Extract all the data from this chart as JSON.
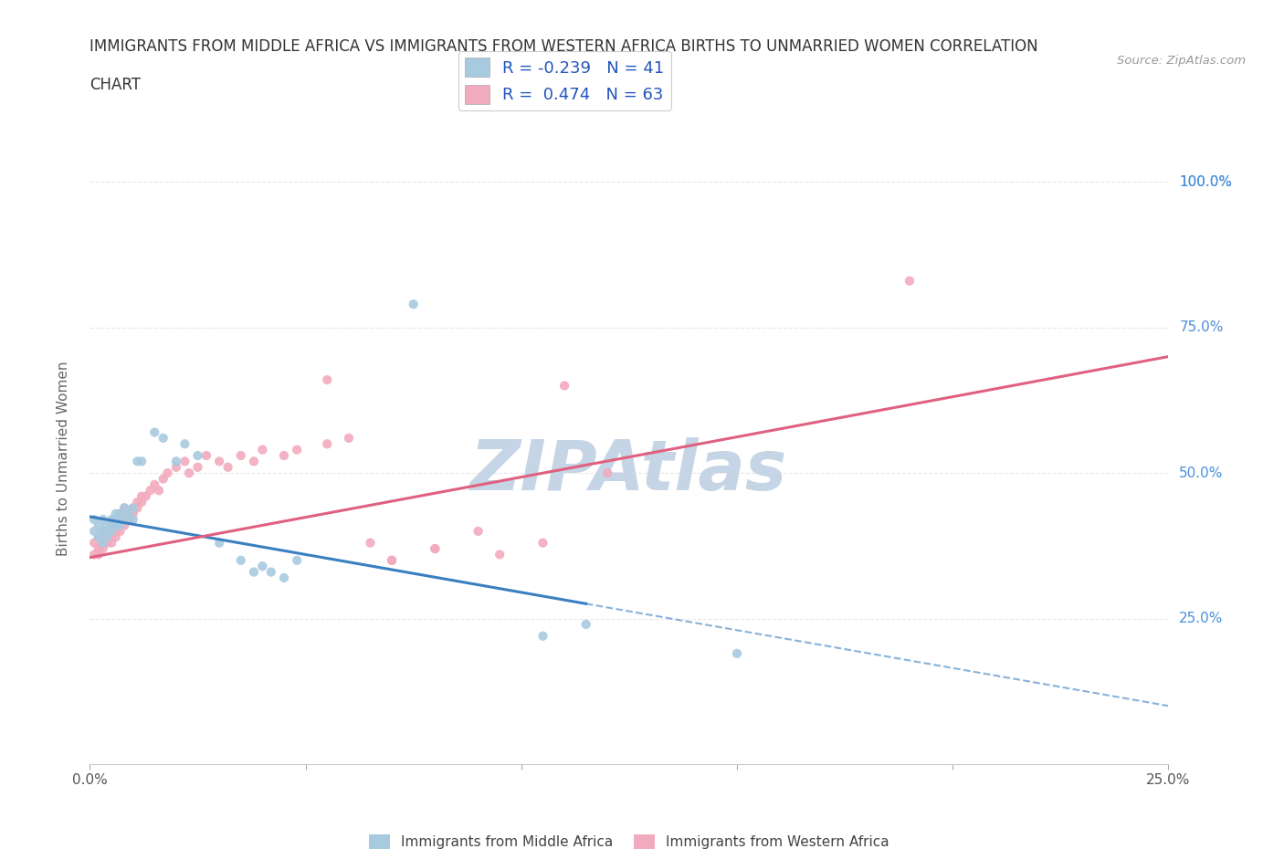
{
  "title_line1": "IMMIGRANTS FROM MIDDLE AFRICA VS IMMIGRANTS FROM WESTERN AFRICA BIRTHS TO UNMARRIED WOMEN CORRELATION",
  "title_line2": "CHART",
  "source_text": "Source: ZipAtlas.com",
  "ylabel": "Births to Unmarried Women",
  "xlim": [
    0.0,
    0.25
  ],
  "ylim": [
    0.0,
    1.05
  ],
  "xtick_values": [
    0.0,
    0.05,
    0.1,
    0.15,
    0.2,
    0.25
  ],
  "xtick_labels_show": [
    "0.0%",
    "",
    "",
    "",
    "",
    "25.0%"
  ],
  "ytick_values": [
    0.25,
    0.5,
    0.75,
    1.0
  ],
  "ytick_labels": [
    "25.0%",
    "50.0%",
    "75.0%",
    "100.0%"
  ],
  "legend_blue_label": "Immigrants from Middle Africa",
  "legend_pink_label": "Immigrants from Western Africa",
  "R_blue": -0.239,
  "N_blue": 41,
  "R_pink": 0.474,
  "N_pink": 63,
  "blue_color": "#A8CADF",
  "pink_color": "#F2ABBE",
  "blue_line_color": "#3A7FC1",
  "pink_line_color": "#E06080",
  "blue_scatter": [
    [
      0.001,
      0.42
    ],
    [
      0.001,
      0.4
    ],
    [
      0.002,
      0.41
    ],
    [
      0.002,
      0.39
    ],
    [
      0.003,
      0.42
    ],
    [
      0.003,
      0.4
    ],
    [
      0.003,
      0.38
    ],
    [
      0.004,
      0.41
    ],
    [
      0.004,
      0.4
    ],
    [
      0.004,
      0.39
    ],
    [
      0.005,
      0.42
    ],
    [
      0.005,
      0.41
    ],
    [
      0.005,
      0.4
    ],
    [
      0.006,
      0.43
    ],
    [
      0.006,
      0.42
    ],
    [
      0.006,
      0.41
    ],
    [
      0.007,
      0.43
    ],
    [
      0.007,
      0.41
    ],
    [
      0.008,
      0.44
    ],
    [
      0.008,
      0.42
    ],
    [
      0.009,
      0.43
    ],
    [
      0.01,
      0.44
    ],
    [
      0.01,
      0.42
    ],
    [
      0.011,
      0.52
    ],
    [
      0.012,
      0.52
    ],
    [
      0.015,
      0.57
    ],
    [
      0.017,
      0.56
    ],
    [
      0.02,
      0.52
    ],
    [
      0.022,
      0.55
    ],
    [
      0.025,
      0.53
    ],
    [
      0.03,
      0.38
    ],
    [
      0.035,
      0.35
    ],
    [
      0.038,
      0.33
    ],
    [
      0.04,
      0.34
    ],
    [
      0.042,
      0.33
    ],
    [
      0.045,
      0.32
    ],
    [
      0.048,
      0.35
    ],
    [
      0.075,
      0.79
    ],
    [
      0.105,
      0.22
    ],
    [
      0.115,
      0.24
    ],
    [
      0.15,
      0.19
    ]
  ],
  "pink_scatter": [
    [
      0.001,
      0.36
    ],
    [
      0.001,
      0.38
    ],
    [
      0.002,
      0.37
    ],
    [
      0.002,
      0.39
    ],
    [
      0.002,
      0.36
    ],
    [
      0.003,
      0.38
    ],
    [
      0.003,
      0.4
    ],
    [
      0.003,
      0.37
    ],
    [
      0.004,
      0.39
    ],
    [
      0.004,
      0.38
    ],
    [
      0.004,
      0.4
    ],
    [
      0.005,
      0.39
    ],
    [
      0.005,
      0.41
    ],
    [
      0.005,
      0.38
    ],
    [
      0.006,
      0.4
    ],
    [
      0.006,
      0.42
    ],
    [
      0.006,
      0.39
    ],
    [
      0.007,
      0.41
    ],
    [
      0.007,
      0.43
    ],
    [
      0.007,
      0.4
    ],
    [
      0.008,
      0.42
    ],
    [
      0.008,
      0.44
    ],
    [
      0.008,
      0.41
    ],
    [
      0.009,
      0.43
    ],
    [
      0.009,
      0.42
    ],
    [
      0.01,
      0.44
    ],
    [
      0.01,
      0.43
    ],
    [
      0.011,
      0.45
    ],
    [
      0.011,
      0.44
    ],
    [
      0.012,
      0.46
    ],
    [
      0.012,
      0.45
    ],
    [
      0.013,
      0.46
    ],
    [
      0.014,
      0.47
    ],
    [
      0.015,
      0.48
    ],
    [
      0.016,
      0.47
    ],
    [
      0.017,
      0.49
    ],
    [
      0.018,
      0.5
    ],
    [
      0.02,
      0.51
    ],
    [
      0.022,
      0.52
    ],
    [
      0.023,
      0.5
    ],
    [
      0.025,
      0.51
    ],
    [
      0.027,
      0.53
    ],
    [
      0.03,
      0.52
    ],
    [
      0.032,
      0.51
    ],
    [
      0.035,
      0.53
    ],
    [
      0.038,
      0.52
    ],
    [
      0.04,
      0.54
    ],
    [
      0.045,
      0.53
    ],
    [
      0.048,
      0.54
    ],
    [
      0.055,
      0.55
    ],
    [
      0.06,
      0.56
    ],
    [
      0.065,
      0.38
    ],
    [
      0.07,
      0.35
    ],
    [
      0.08,
      0.37
    ],
    [
      0.095,
      0.36
    ],
    [
      0.105,
      0.38
    ],
    [
      0.12,
      0.5
    ],
    [
      0.055,
      0.66
    ],
    [
      0.19,
      0.83
    ],
    [
      0.09,
      0.4
    ],
    [
      0.11,
      0.65
    ],
    [
      0.07,
      0.35
    ],
    [
      0.08,
      0.37
    ]
  ],
  "watermark_color": "#C5D5E5",
  "background_color": "#FFFFFF",
  "grid_color": "#E8E8E8",
  "grid_style": "--"
}
